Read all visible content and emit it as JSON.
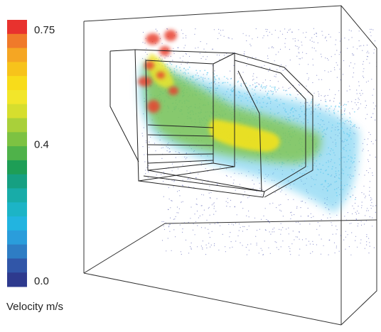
{
  "colorbar": {
    "title": "Velocity m/s",
    "min": 0.0,
    "max": 0.75,
    "labels": [
      "0.75",
      "0.4",
      "0.0"
    ],
    "label_values": [
      0.75,
      0.4,
      0.0
    ],
    "colors": [
      "#E8322E",
      "#F07A2A",
      "#F5A623",
      "#F7C31B",
      "#F8DC1A",
      "#F2E62A",
      "#D6DE2E",
      "#A9D03A",
      "#7DC242",
      "#4FB24A",
      "#1E9E56",
      "#16A082",
      "#18ACA8",
      "#1CB4C6",
      "#22B4E0",
      "#2A9DDB",
      "#2E7DC4",
      "#3156A8",
      "#2E3A8E"
    ]
  },
  "scene": {
    "particle_colors": {
      "sparse": "#3B44A8",
      "cyan": "#5EC8EE",
      "green": "#6DBE45",
      "yellow": "#F3E21E",
      "red": "#E8402E"
    }
  }
}
